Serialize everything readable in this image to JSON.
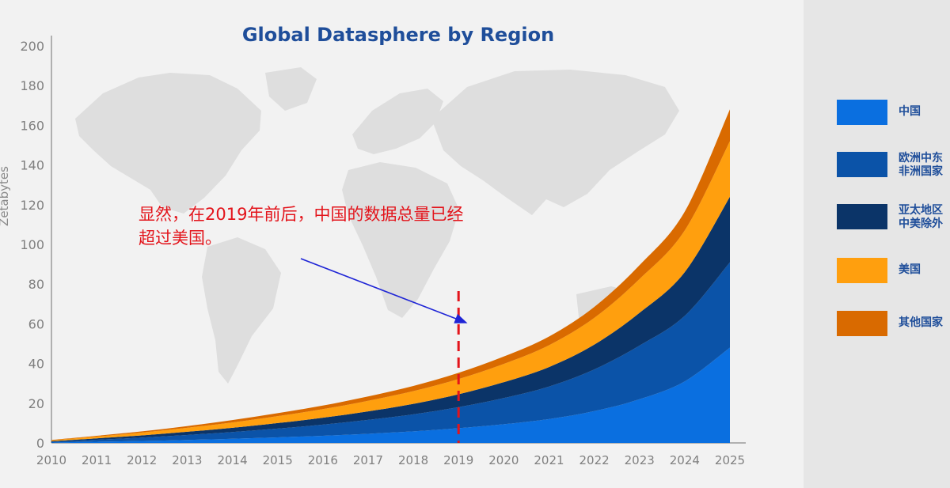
{
  "chart_data": {
    "type": "area",
    "stacked": true,
    "title": "Global Datasphere by Region",
    "xlabel": "",
    "ylabel": "Zetabytes",
    "x": [
      2010,
      2011,
      2012,
      2013,
      2014,
      2015,
      2016,
      2017,
      2018,
      2019,
      2020,
      2021,
      2022,
      2023,
      2024,
      2025
    ],
    "ylim": [
      0,
      200
    ],
    "yticks": [
      0,
      20,
      40,
      60,
      80,
      100,
      120,
      140,
      160,
      180,
      200
    ],
    "series": [
      {
        "name": "中国",
        "color": "#0a6fe0",
        "values": [
          0.2,
          0.6,
          1.0,
          1.5,
          2.1,
          2.8,
          3.6,
          4.6,
          5.8,
          7.4,
          9.4,
          12.0,
          16.0,
          22.0,
          31.0,
          48.0
        ]
      },
      {
        "name": "欧洲中东\n非洲国家",
        "color": "#0b53a8",
        "values": [
          0.4,
          1.0,
          1.7,
          2.5,
          3.4,
          4.4,
          5.6,
          7.0,
          8.6,
          10.6,
          13.2,
          16.4,
          21.0,
          27.0,
          33.0,
          43.0
        ]
      },
      {
        "name": "亚太地区\n中美除外",
        "color": "#0b3468",
        "values": [
          0.3,
          0.7,
          1.1,
          1.6,
          2.1,
          2.8,
          3.5,
          4.3,
          5.3,
          6.5,
          8.0,
          9.8,
          12.5,
          16.5,
          22.0,
          33.0
        ]
      },
      {
        "name": "美国",
        "color": "#ff9f0e",
        "values": [
          0.4,
          0.9,
          1.4,
          2.0,
          2.7,
          3.5,
          4.3,
          5.3,
          6.4,
          7.7,
          9.2,
          11.0,
          13.5,
          17.0,
          21.0,
          28.0
        ]
      },
      {
        "name": "其他国家",
        "color": "#d96a00",
        "values": [
          0.2,
          0.4,
          0.6,
          0.9,
          1.2,
          1.5,
          1.8,
          2.2,
          2.6,
          3.1,
          3.7,
          4.4,
          5.5,
          7.0,
          9.5,
          16.0
        ]
      }
    ],
    "annotation": {
      "text": "显然，在2019年前后，中国的数据总量已经超过美国。",
      "marker_x": 2019
    },
    "legend_position": "right",
    "grid": false,
    "background_map": "world-map"
  }
}
